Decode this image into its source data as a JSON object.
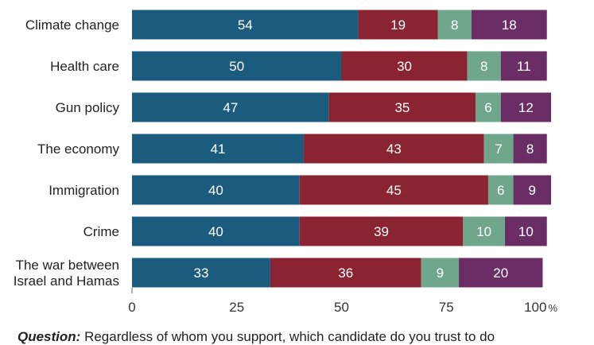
{
  "chart_data": {
    "type": "bar",
    "orientation": "horizontal",
    "stacked": true,
    "categories": [
      "Climate change",
      "Health care",
      "Gun policy",
      "The economy",
      "Immigration",
      "Crime",
      "The war between Israel and Hamas"
    ],
    "category_lines": [
      [
        "Climate change"
      ],
      [
        "Health care"
      ],
      [
        "Gun policy"
      ],
      [
        "The economy"
      ],
      [
        "Immigration"
      ],
      [
        "Crime"
      ],
      [
        "The war between",
        "Israel and Hamas"
      ]
    ],
    "series": [
      {
        "color": "#1b5b7d",
        "values": [
          54,
          50,
          47,
          41,
          40,
          40,
          33
        ]
      },
      {
        "color": "#8a2432",
        "values": [
          19,
          30,
          35,
          43,
          45,
          39,
          36
        ]
      },
      {
        "color": "#6fa68c",
        "values": [
          8,
          8,
          6,
          7,
          6,
          10,
          9
        ]
      },
      {
        "color": "#6a2d66",
        "values": [
          18,
          11,
          12,
          8,
          9,
          10,
          20
        ]
      }
    ],
    "xlim": [
      0,
      100
    ],
    "xticks": [
      0,
      25,
      50,
      75,
      100
    ],
    "x_suffix": "%",
    "grid": false,
    "legend": "none"
  },
  "footnote": {
    "label": "Question:",
    "text": "Regardless of whom you support, which candidate do you trust to do"
  }
}
